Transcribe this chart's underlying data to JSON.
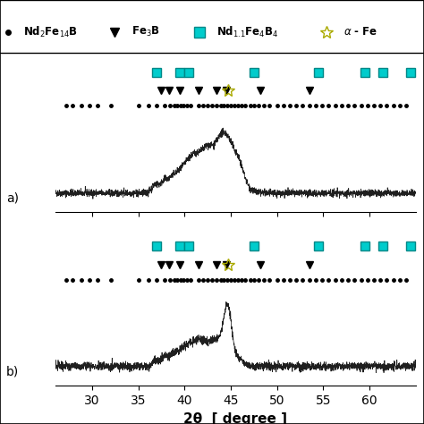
{
  "xlim": [
    26,
    65
  ],
  "xlabel": "2θ  [ degree ]",
  "xlabel_fontsize": 11,
  "background_color": "#ffffff",
  "panel_a_label": "a)",
  "panel_b_label": "b)",
  "nd2fe14b_dots_top": [
    27.2,
    27.9,
    28.8,
    29.7,
    30.6,
    32.0,
    35.0,
    36.1,
    37.0,
    37.8,
    38.4,
    38.9,
    39.2,
    39.6,
    39.9,
    40.3,
    40.7,
    41.5,
    42.0,
    42.5,
    43.0,
    43.5,
    43.9,
    44.2,
    44.6,
    45.0,
    45.4,
    45.8,
    46.2,
    46.6,
    47.1,
    47.5,
    48.0,
    48.6,
    49.2,
    50.0,
    50.7,
    51.4,
    52.1,
    52.8,
    53.5,
    54.2,
    54.9,
    55.6,
    56.3,
    57.0,
    57.7,
    58.4,
    59.1,
    59.8,
    60.5,
    61.2,
    61.9,
    62.6,
    63.3,
    64.0
  ],
  "fe3b_triangles_top": [
    37.5,
    38.3,
    39.5,
    41.5,
    43.5,
    44.5,
    48.2,
    53.5
  ],
  "nd11fe4b4_squares_top": [
    37.0,
    39.5,
    40.5,
    47.5,
    54.5,
    59.5,
    61.5,
    64.5
  ],
  "alpha_fe_star_top": [
    44.7
  ],
  "nd2fe14b_dots_bot": [
    27.2,
    27.9,
    28.8,
    29.7,
    30.6,
    32.0,
    35.0,
    36.1,
    37.0,
    37.8,
    38.4,
    38.9,
    39.2,
    39.6,
    39.9,
    40.3,
    40.7,
    41.5,
    42.0,
    42.5,
    43.0,
    43.5,
    43.9,
    44.2,
    44.6,
    45.0,
    45.4,
    45.8,
    46.2,
    46.6,
    47.1,
    47.5,
    48.0,
    48.6,
    49.2,
    50.0,
    50.7,
    51.4,
    52.1,
    52.8,
    53.5,
    54.2,
    54.9,
    55.6,
    56.3,
    57.0,
    57.7,
    58.4,
    59.1,
    59.8,
    60.5,
    61.2,
    61.9,
    62.6,
    63.3,
    64.0
  ],
  "fe3b_triangles_bot": [
    37.5,
    38.3,
    39.5,
    41.5,
    43.5,
    44.5,
    48.2,
    53.5
  ],
  "nd11fe4b4_squares_bot": [
    37.0,
    39.5,
    40.5,
    47.5,
    54.5,
    59.5,
    61.5,
    64.5
  ],
  "alpha_fe_star_bot": [
    44.7
  ],
  "xticks": [
    30,
    35,
    40,
    45,
    50,
    55,
    60
  ],
  "peak_positions_a": [
    36.8,
    37.8,
    38.8,
    39.8,
    40.8,
    41.8,
    42.5,
    43.8,
    44.8,
    46.0
  ],
  "peak_widths_a": [
    0.35,
    0.45,
    0.5,
    0.6,
    0.7,
    0.8,
    0.5,
    0.9,
    1.1,
    0.5
  ],
  "peak_heights_a": [
    0.1,
    0.14,
    0.17,
    0.2,
    0.28,
    0.32,
    0.18,
    0.38,
    0.48,
    0.12
  ],
  "noise_level_a": 0.022,
  "peak_positions_b": [
    36.8,
    37.8,
    38.8,
    39.8,
    40.8,
    41.8,
    43.5,
    44.7,
    46.0
  ],
  "peak_widths_b": [
    0.3,
    0.4,
    0.48,
    0.55,
    0.65,
    0.7,
    0.85,
    0.45,
    0.45
  ],
  "peak_heights_b": [
    0.07,
    0.11,
    0.13,
    0.16,
    0.19,
    0.24,
    0.32,
    0.65,
    0.09
  ],
  "noise_level_b": 0.026,
  "square_color": "#00CCCC",
  "square_edge_color": "#008888",
  "star_face_color": "none",
  "star_edge_color": "#AAAA00"
}
